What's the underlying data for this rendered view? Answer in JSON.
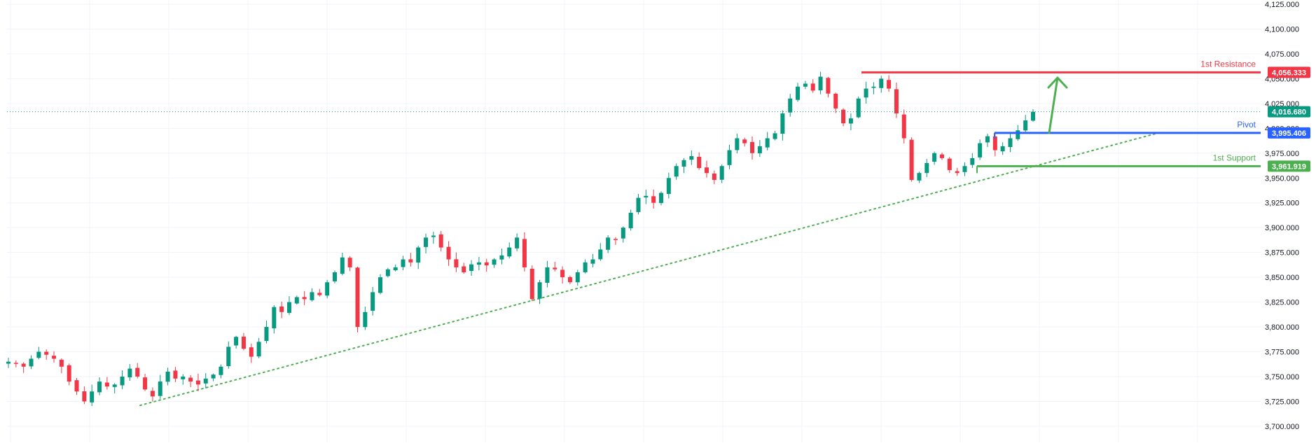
{
  "chart_data": {
    "type": "candlestick",
    "y_axis_side": "right",
    "ylim": [
      3695,
      4125
    ],
    "y_ticks": [
      "4,125.000",
      "4,100.000",
      "4,075.000",
      "4,050.000",
      "4,025.000",
      "4,000.000",
      "3,975.000",
      "3,950.000",
      "3,925.000",
      "3,900.000",
      "3,875.000",
      "3,850.000",
      "3,825.000",
      "3,800.000",
      "3,775.000",
      "3,750.000",
      "3,725.000",
      "3,700.000"
    ],
    "y_tick_values": [
      4125,
      4100,
      4075,
      4050,
      4025,
      4000,
      3975,
      3950,
      3925,
      3900,
      3875,
      3850,
      3825,
      3800,
      3775,
      3750,
      3725,
      3700
    ],
    "grid": true,
    "colors": {
      "up": "#089981",
      "down": "#f23645",
      "grid": "#f0f3fa",
      "axis_text": "#131722"
    },
    "current_price": {
      "value": 4016.68,
      "label": "4,016.680",
      "color": "#089981"
    },
    "levels": [
      {
        "name": "1st Resistance",
        "value": 4056.333,
        "label": "4,056.333",
        "color": "#f23645"
      },
      {
        "name": "Pivot",
        "value": 3995.406,
        "label": "3,995.406",
        "color": "#2962ff"
      },
      {
        "name": "1st Support",
        "value": 3961.919,
        "label": "3,961.919",
        "color": "#4caf50"
      }
    ],
    "trendline": {
      "style": "dotted",
      "color": "#4caf50",
      "from_price": 3721,
      "to_price": 3995
    },
    "projection_arrow": {
      "color": "#4caf50",
      "from_price": 3995.4,
      "to_price": 4051
    },
    "candles_close_path": [
      3765,
      3763,
      3760,
      3768,
      3775,
      3772,
      3768,
      3760,
      3745,
      3735,
      3725,
      3735,
      3745,
      3740,
      3742,
      3750,
      3758,
      3750,
      3737,
      3730,
      3745,
      3755,
      3748,
      3750,
      3745,
      3742,
      3748,
      3752,
      3760,
      3780,
      3790,
      3778,
      3770,
      3785,
      3800,
      3820,
      3815,
      3825,
      3830,
      3828,
      3835,
      3832,
      3845,
      3855,
      3870,
      3860,
      3800,
      3815,
      3835,
      3850,
      3858,
      3860,
      3868,
      3865,
      3880,
      3890,
      3892,
      3880,
      3868,
      3860,
      3855,
      3863,
      3865,
      3862,
      3868,
      3872,
      3880,
      3890,
      3860,
      3828,
      3845,
      3860,
      3858,
      3850,
      3845,
      3855,
      3865,
      3868,
      3878,
      3890,
      3888,
      3900,
      3915,
      3930,
      3932,
      3925,
      3935,
      3950,
      3962,
      3968,
      3972,
      3960,
      3955,
      3948,
      3962,
      3978,
      3990,
      3985,
      3975,
      3982,
      3990,
      3995,
      4015,
      4030,
      4042,
      4045,
      4038,
      4052,
      4035,
      4020,
      4005,
      4010,
      4030,
      4040,
      4042,
      4050,
      4040,
      4015,
      3990,
      3948,
      3955,
      3965,
      3975,
      3970,
      3958,
      3955,
      3962,
      3970,
      3985,
      3992,
      3978,
      3982,
      3990,
      3998,
      4008,
      4016.68
    ]
  }
}
